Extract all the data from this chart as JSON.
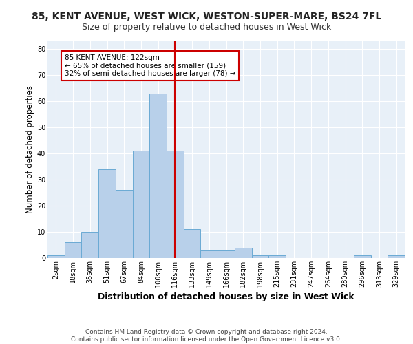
{
  "title1": "85, KENT AVENUE, WEST WICK, WESTON-SUPER-MARE, BS24 7FL",
  "title2": "Size of property relative to detached houses in West Wick",
  "xlabel": "Distribution of detached houses by size in West Wick",
  "ylabel": "Number of detached properties",
  "bar_labels": [
    "2sqm",
    "18sqm",
    "35sqm",
    "51sqm",
    "67sqm",
    "84sqm",
    "100sqm",
    "116sqm",
    "133sqm",
    "149sqm",
    "166sqm",
    "182sqm",
    "198sqm",
    "215sqm",
    "231sqm",
    "247sqm",
    "264sqm",
    "280sqm",
    "296sqm",
    "313sqm",
    "329sqm"
  ],
  "bar_values": [
    1,
    6,
    10,
    34,
    26,
    41,
    63,
    41,
    11,
    3,
    3,
    4,
    1,
    1,
    0,
    0,
    0,
    0,
    1,
    0,
    1
  ],
  "bar_color": "#b8d0ea",
  "bar_edgecolor": "#6aaad4",
  "background_color": "#e8f0f8",
  "grid_color": "#ffffff",
  "vline_x_index": 7.0,
  "vline_color": "#cc0000",
  "annotation_text": "85 KENT AVENUE: 122sqm\n← 65% of detached houses are smaller (159)\n32% of semi-detached houses are larger (78) →",
  "annotation_box_color": "#ffffff",
  "annotation_box_edgecolor": "#cc0000",
  "footer": "Contains HM Land Registry data © Crown copyright and database right 2024.\nContains public sector information licensed under the Open Government Licence v3.0.",
  "ylim": [
    0,
    83
  ],
  "yticks": [
    0,
    10,
    20,
    30,
    40,
    50,
    60,
    70,
    80
  ],
  "title1_fontsize": 10,
  "title2_fontsize": 9,
  "xlabel_fontsize": 9,
  "ylabel_fontsize": 8.5,
  "tick_fontsize": 7,
  "annotation_fontsize": 7.5,
  "footer_fontsize": 6.5
}
